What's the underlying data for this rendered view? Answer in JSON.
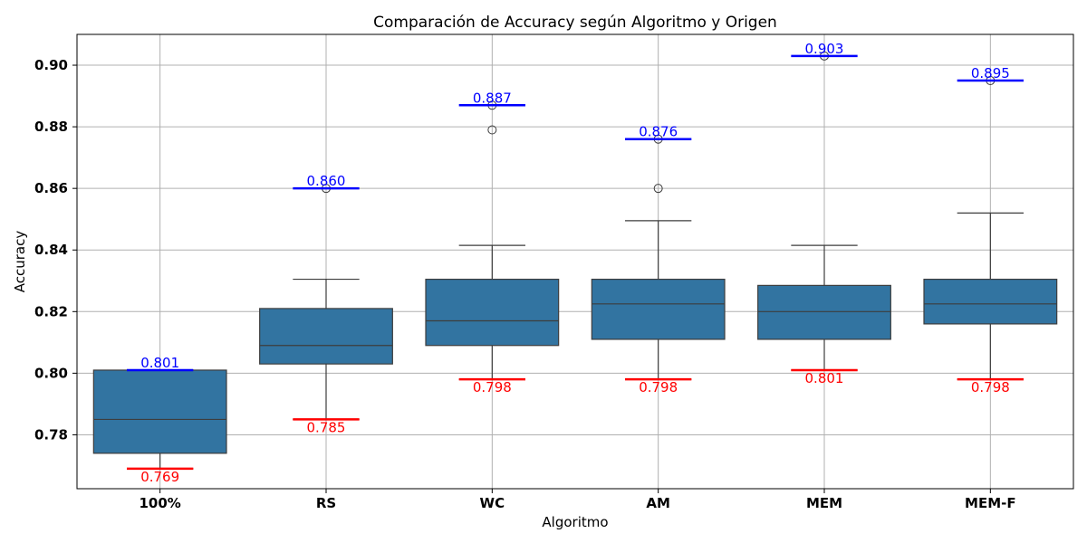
{
  "chart_data": {
    "type": "box",
    "title": "Comparación de Accuracy según Algoritmo y Origen",
    "xlabel": "Algoritmo",
    "ylabel": "Accuracy",
    "ylim": [
      0.7625,
      0.91
    ],
    "yticks": [
      "0.78",
      "0.80",
      "0.82",
      "0.84",
      "0.86",
      "0.88",
      "0.90"
    ],
    "grid": true,
    "box_color": "#3274a1",
    "max_color": "#0000ff",
    "min_color": "#ff0000",
    "categories": [
      "100%",
      "RS",
      "WC",
      "AM",
      "MEM",
      "MEM-F"
    ],
    "boxes": [
      {
        "name": "100%",
        "whisker_low": 0.769,
        "q1": 0.774,
        "median": 0.785,
        "q3": 0.801,
        "whisker_high": 0.801,
        "outliers": [],
        "max": 0.801,
        "min": 0.769,
        "max_label": "0.801",
        "min_label": "0.769"
      },
      {
        "name": "RS",
        "whisker_low": 0.785,
        "q1": 0.803,
        "median": 0.809,
        "q3": 0.821,
        "whisker_high": 0.8305,
        "outliers": [
          0.86
        ],
        "max": 0.86,
        "min": 0.785,
        "max_label": "0.860",
        "min_label": "0.785"
      },
      {
        "name": "WC",
        "whisker_low": 0.798,
        "q1": 0.809,
        "median": 0.817,
        "q3": 0.8305,
        "whisker_high": 0.8415,
        "outliers": [
          0.879,
          0.887
        ],
        "max": 0.887,
        "min": 0.798,
        "max_label": "0.887",
        "min_label": "0.798"
      },
      {
        "name": "AM",
        "whisker_low": 0.798,
        "q1": 0.811,
        "median": 0.8225,
        "q3": 0.8305,
        "whisker_high": 0.8495,
        "outliers": [
          0.86,
          0.876
        ],
        "max": 0.876,
        "min": 0.798,
        "max_label": "0.876",
        "min_label": "0.798"
      },
      {
        "name": "MEM",
        "whisker_low": 0.801,
        "q1": 0.811,
        "median": 0.82,
        "q3": 0.8285,
        "whisker_high": 0.8415,
        "outliers": [
          0.903
        ],
        "max": 0.903,
        "min": 0.801,
        "max_label": "0.903",
        "min_label": "0.801"
      },
      {
        "name": "MEM-F",
        "whisker_low": 0.798,
        "q1": 0.816,
        "median": 0.8225,
        "q3": 0.8305,
        "whisker_high": 0.852,
        "outliers": [
          0.895
        ],
        "max": 0.895,
        "min": 0.798,
        "max_label": "0.895",
        "min_label": "0.798"
      }
    ]
  }
}
